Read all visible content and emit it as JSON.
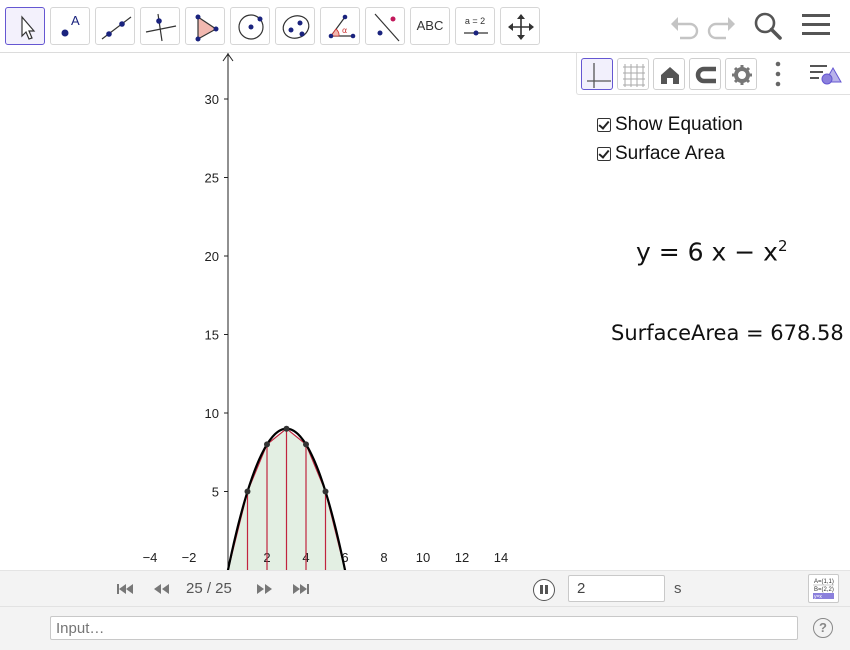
{
  "toolbar": {
    "tools": [
      {
        "name": "move-tool",
        "active": true
      },
      {
        "name": "point-tool",
        "label": "A"
      },
      {
        "name": "line-tool"
      },
      {
        "name": "perpendicular-line-tool"
      },
      {
        "name": "polygon-tool"
      },
      {
        "name": "circle-tool"
      },
      {
        "name": "ellipse-tool"
      },
      {
        "name": "angle-tool",
        "label": "α"
      },
      {
        "name": "reflect-tool"
      },
      {
        "name": "text-tool",
        "label": "ABC"
      },
      {
        "name": "slider-tool",
        "label": "a = 2"
      },
      {
        "name": "move-graphics-view-tool"
      }
    ]
  },
  "checkboxes": [
    {
      "label": "Show Equation",
      "checked": true
    },
    {
      "label": "Surface Area",
      "checked": true
    }
  ],
  "equation": {
    "lhs": "y",
    "rhs": "6 x − x",
    "exponent": "2"
  },
  "surface_area": {
    "label": "SurfaceArea",
    "value": "678.58"
  },
  "axes": {
    "x_ticks": [
      "−4",
      "−2",
      "2",
      "4",
      "6",
      "8",
      "10",
      "12",
      "14"
    ],
    "y_ticks": [
      "5",
      "10",
      "15",
      "20",
      "25",
      "30"
    ]
  },
  "plot": {
    "function": "6x - x^2",
    "points_x": [
      1,
      2,
      3,
      4,
      5
    ],
    "curve_color": "#000000",
    "segment_color": "#c0243e",
    "fill_color": "#e3efe3"
  },
  "animation": {
    "frame": "25 / 25",
    "speed_value": "2",
    "unit": "s"
  },
  "input_bar": {
    "placeholder": "Input…",
    "help": "?"
  },
  "colors": {
    "accent": "#6557d2",
    "point": "#1a237e"
  }
}
